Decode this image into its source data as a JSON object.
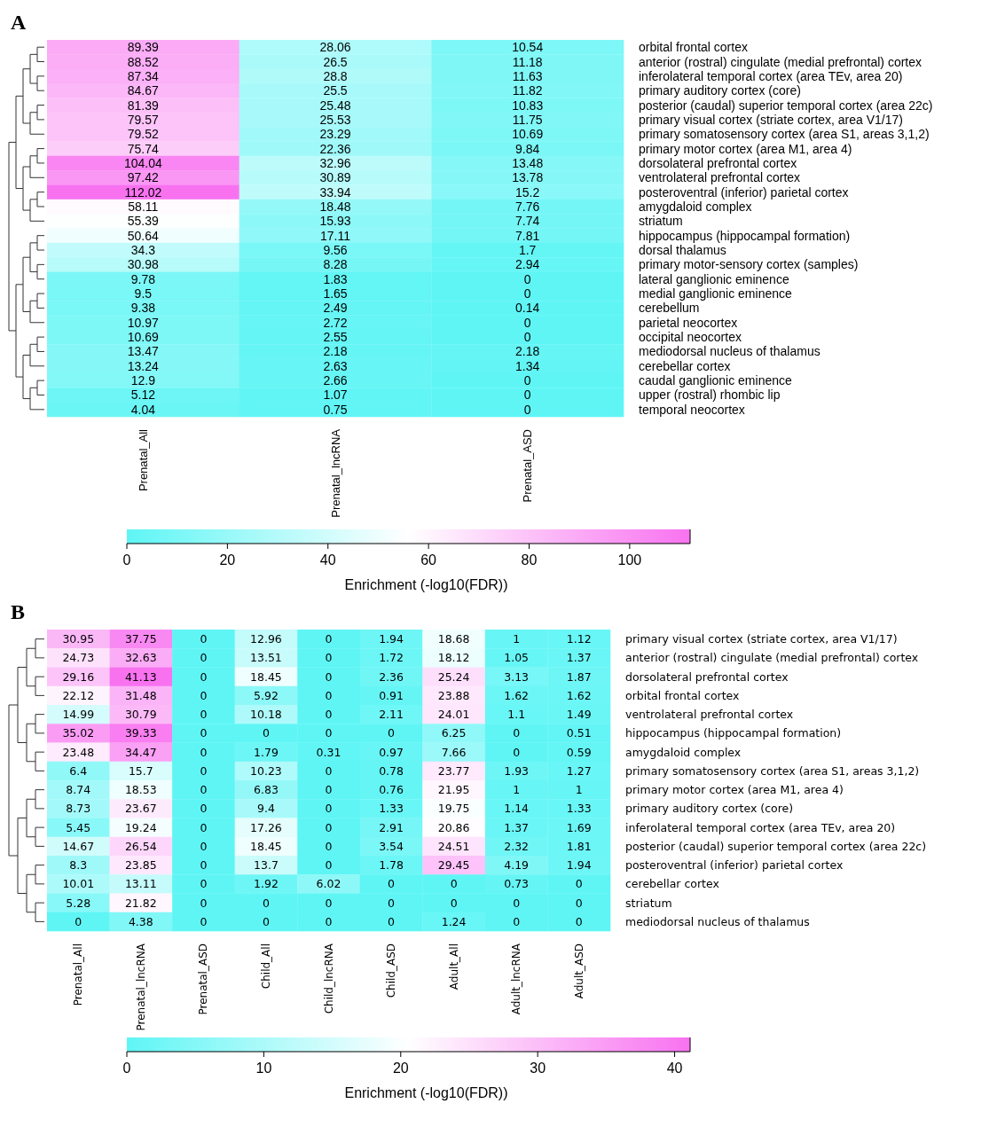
{
  "chart_data": [
    {
      "type": "heatmap",
      "title": "A",
      "categories": [
        "Prenatal_All",
        "Prenatal_lncRNA",
        "Prenatal_ASD"
      ],
      "y_categories": [
        "orbital frontal cortex",
        "anterior (rostral) cingulate (medial prefrontal) cortex",
        "inferolateral temporal cortex (area TEv, area 20)",
        "primary auditory cortex (core)",
        "posterior (caudal) superior temporal cortex (area 22c)",
        "primary visual cortex (striate cortex, area V1/17)",
        "primary somatosensory cortex (area S1, areas 3,1,2)",
        "primary motor cortex (area M1, area 4)",
        "dorsolateral prefrontal cortex",
        "ventrolateral prefrontal cortex",
        "posteroventral (inferior) parietal cortex",
        "amygdaloid complex",
        "striatum",
        "hippocampus (hippocampal formation)",
        "dorsal thalamus",
        "primary motor-sensory cortex (samples)",
        "lateral ganglionic eminence",
        "medial ganglionic eminence",
        "cerebellum",
        "parietal neocortex",
        "occipital neocortex",
        "mediodorsal nucleus of thalamus",
        "cerebellar cortex",
        "caudal ganglionic eminence",
        "upper (rostral) rhombic lip",
        "temporal neocortex"
      ],
      "cells": [
        [
          89.39,
          28.06,
          10.54
        ],
        [
          88.52,
          26.5,
          11.18
        ],
        [
          87.34,
          28.8,
          11.63
        ],
        [
          84.67,
          25.5,
          11.82
        ],
        [
          81.39,
          25.48,
          10.83
        ],
        [
          79.57,
          25.53,
          11.75
        ],
        [
          79.52,
          23.29,
          10.69
        ],
        [
          75.74,
          22.36,
          9.84
        ],
        [
          104.04,
          32.96,
          13.48
        ],
        [
          97.42,
          30.89,
          13.78
        ],
        [
          112.02,
          33.94,
          15.2
        ],
        [
          58.11,
          18.48,
          7.76
        ],
        [
          55.39,
          15.93,
          7.74
        ],
        [
          50.64,
          17.11,
          7.81
        ],
        [
          34.3,
          9.56,
          1.7
        ],
        [
          30.98,
          8.28,
          2.94
        ],
        [
          9.78,
          1.83,
          0
        ],
        [
          9.5,
          1.65,
          0
        ],
        [
          9.38,
          2.49,
          0.14
        ],
        [
          10.97,
          2.72,
          0
        ],
        [
          10.69,
          2.55,
          0
        ],
        [
          13.47,
          2.18,
          2.18
        ],
        [
          13.24,
          2.63,
          1.34
        ],
        [
          12.9,
          2.66,
          0
        ],
        [
          5.12,
          1.07,
          0
        ],
        [
          4.04,
          0.75,
          0
        ]
      ],
      "data_labels": true,
      "colors": [
        "#5ff5f5",
        "#ffffff",
        "#f872f0"
      ],
      "clim": [
        0,
        112.02
      ],
      "cticks": [
        0,
        20,
        40,
        60,
        80,
        100
      ],
      "clabel": "Enrichment (-log10(FDR))"
    },
    {
      "type": "heatmap",
      "title": "B",
      "categories": [
        "Prenatal_All",
        "Prenatal_lncRNA",
        "Prenatal_ASD",
        "Child_All",
        "Child_lncRNA",
        "Child_ASD",
        "Adult_All",
        "Adult_lncRNA",
        "Adult_ASD"
      ],
      "y_categories": [
        "primary visual cortex (striate cortex, area V1/17)",
        "anterior (rostral) cingulate (medial prefrontal) cortex",
        "dorsolateral prefrontal cortex",
        "orbital frontal cortex",
        "ventrolateral prefrontal cortex",
        "hippocampus (hippocampal formation)",
        "amygdaloid complex",
        "primary somatosensory cortex (area S1, areas 3,1,2)",
        "primary motor cortex (area M1, area 4)",
        "primary auditory cortex (core)",
        "inferolateral temporal cortex (area TEv, area 20)",
        "posterior (caudal) superior temporal cortex (area 22c)",
        "posteroventral (inferior) parietal cortex",
        "cerebellar cortex",
        "striatum",
        "mediodorsal nucleus of thalamus"
      ],
      "cells": [
        [
          30.95,
          37.75,
          0,
          12.96,
          0,
          1.94,
          18.68,
          1,
          1.12
        ],
        [
          24.73,
          32.63,
          0,
          13.51,
          0,
          1.72,
          18.12,
          1.05,
          1.37
        ],
        [
          29.16,
          41.13,
          0,
          18.45,
          0,
          2.36,
          25.24,
          3.13,
          1.87
        ],
        [
          22.12,
          31.48,
          0,
          5.92,
          0,
          0.91,
          23.88,
          1.62,
          1.62
        ],
        [
          14.99,
          30.79,
          0,
          10.18,
          0,
          2.11,
          24.01,
          1.1,
          1.49
        ],
        [
          35.02,
          39.33,
          0,
          0,
          0,
          0,
          6.25,
          0,
          0.51
        ],
        [
          23.48,
          34.47,
          0,
          1.79,
          0.31,
          0.97,
          7.66,
          0,
          0.59
        ],
        [
          6.4,
          15.7,
          0,
          10.23,
          0,
          0.78,
          23.77,
          1.93,
          1.27
        ],
        [
          8.74,
          18.53,
          0,
          6.83,
          0,
          0.76,
          21.95,
          1,
          1
        ],
        [
          8.73,
          23.67,
          0,
          9.4,
          0,
          1.33,
          19.75,
          1.14,
          1.33
        ],
        [
          5.45,
          19.24,
          0,
          17.26,
          0,
          2.91,
          20.86,
          1.37,
          1.69
        ],
        [
          14.67,
          26.54,
          0,
          18.45,
          0,
          3.54,
          24.51,
          2.32,
          1.81
        ],
        [
          8.3,
          23.85,
          0,
          13.7,
          0,
          1.78,
          29.45,
          4.19,
          1.94
        ],
        [
          10.01,
          13.11,
          0,
          1.92,
          6.02,
          0,
          0,
          0.73,
          0
        ],
        [
          5.28,
          21.82,
          0,
          0,
          0,
          0,
          0,
          0,
          0
        ],
        [
          0,
          4.38,
          0,
          0,
          0,
          0,
          1.24,
          0,
          0
        ]
      ],
      "data_labels": true,
      "colors": [
        "#5ff5f5",
        "#ffffff",
        "#f872f0"
      ],
      "clim": [
        0,
        41.13
      ],
      "cticks": [
        0,
        10,
        20,
        30,
        40
      ],
      "clabel": "Enrichment (-log10(FDR))"
    }
  ]
}
